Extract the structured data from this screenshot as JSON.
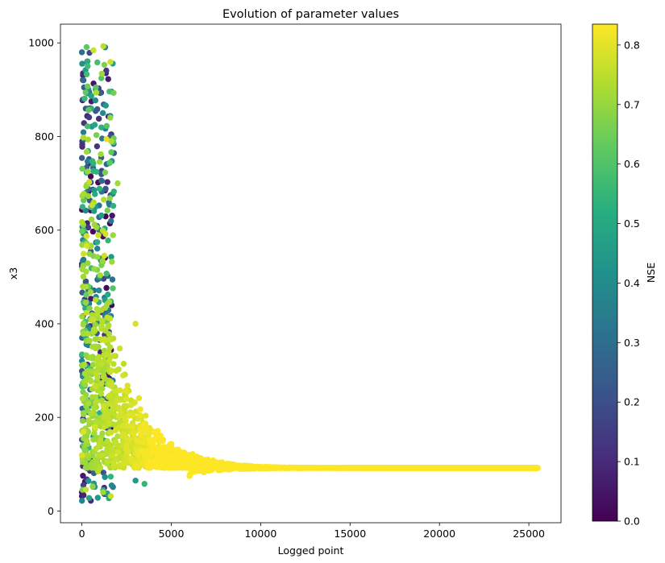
{
  "chart_data": {
    "type": "scatter",
    "title": "Evolution of parameter values",
    "xlabel": "Logged point",
    "ylabel": "x3",
    "xlim": [
      -1200,
      26800
    ],
    "ylim": [
      -25,
      1040
    ],
    "xticks": [
      0,
      5000,
      10000,
      15000,
      20000,
      25000
    ],
    "yticks": [
      0,
      200,
      400,
      600,
      800,
      1000
    ],
    "grid": false,
    "colorbar": {
      "label": "NSE",
      "colormap": "viridis",
      "range": [
        0.0,
        0.835
      ],
      "ticks": [
        0.0,
        0.1,
        0.2,
        0.3,
        0.4,
        0.5,
        0.6,
        0.7,
        0.8
      ]
    },
    "x_max": 25500,
    "converged_y": 92,
    "points_sample": [
      {
        "x": 0,
        "y": 980,
        "nse": 0.3
      },
      {
        "x": 60,
        "y": 935,
        "nse": 0.1
      },
      {
        "x": 120,
        "y": 905,
        "nse": 0.25
      },
      {
        "x": 0,
        "y": 40,
        "nse": 0.05
      },
      {
        "x": 500,
        "y": 22,
        "nse": 0.1
      },
      {
        "x": 1200,
        "y": 993,
        "nse": 0.75
      },
      {
        "x": 2000,
        "y": 700,
        "nse": 0.72
      },
      {
        "x": 3000,
        "y": 400,
        "nse": 0.78
      },
      {
        "x": 3500,
        "y": 58,
        "nse": 0.55
      },
      {
        "x": 3000,
        "y": 65,
        "nse": 0.45
      },
      {
        "x": 4500,
        "y": 150,
        "nse": 0.82
      },
      {
        "x": 6000,
        "y": 120,
        "nse": 0.83
      },
      {
        "x": 8000,
        "y": 98,
        "nse": 0.83
      },
      {
        "x": 12000,
        "y": 93,
        "nse": 0.83
      },
      {
        "x": 25500,
        "y": 92,
        "nse": 0.835
      }
    ]
  }
}
